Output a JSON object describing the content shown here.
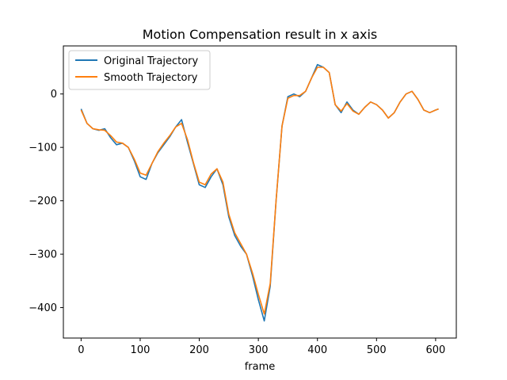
{
  "chart_data": {
    "type": "line",
    "title": "Motion Compensation result in x axis",
    "xlabel": "frame",
    "ylabel": "",
    "xlim": [
      -30,
      635
    ],
    "ylim": [
      -457,
      90
    ],
    "xticks": [
      0,
      100,
      200,
      300,
      400,
      500,
      600
    ],
    "yticks": [
      0,
      -100,
      -200,
      -300,
      -400
    ],
    "xtick_labels": [
      "0",
      "100",
      "200",
      "300",
      "400",
      "500",
      "600"
    ],
    "ytick_labels": [
      "0",
      "−100",
      "−200",
      "−300",
      "−400"
    ],
    "grid": false,
    "legend_position": "top-left",
    "series": [
      {
        "name": "Original Trajectory",
        "color": "#1f77b4",
        "x": [
          0,
          10,
          20,
          30,
          40,
          50,
          60,
          70,
          80,
          90,
          100,
          110,
          120,
          130,
          140,
          150,
          160,
          170,
          180,
          190,
          200,
          210,
          220,
          230,
          240,
          250,
          260,
          270,
          280,
          290,
          300,
          310,
          320,
          330,
          340,
          350,
          360,
          370,
          380,
          390,
          400,
          410,
          420,
          430,
          440,
          450,
          460,
          470,
          480,
          490,
          500,
          510,
          520,
          530,
          540,
          550,
          560,
          570,
          580,
          590,
          600,
          605
        ],
        "y": [
          -28,
          -55,
          -65,
          -68,
          -65,
          -82,
          -95,
          -92,
          -100,
          -125,
          -155,
          -160,
          -130,
          -110,
          -95,
          -80,
          -62,
          -48,
          -90,
          -130,
          -170,
          -175,
          -155,
          -140,
          -170,
          -230,
          -265,
          -285,
          -300,
          -340,
          -385,
          -425,
          -360,
          -200,
          -60,
          -5,
          0,
          -5,
          5,
          30,
          55,
          50,
          40,
          -20,
          -35,
          -15,
          -30,
          -38,
          -25,
          -15,
          -20,
          -30,
          -45,
          -35,
          -15,
          0,
          5,
          -10,
          -30,
          -35,
          -30,
          -28
        ]
      },
      {
        "name": "Smooth Trajectory",
        "color": "#ff7f0e",
        "x": [
          0,
          10,
          20,
          30,
          40,
          50,
          60,
          70,
          80,
          90,
          100,
          110,
          120,
          130,
          140,
          150,
          160,
          170,
          180,
          190,
          200,
          210,
          220,
          230,
          240,
          250,
          260,
          270,
          280,
          290,
          300,
          310,
          320,
          330,
          340,
          350,
          360,
          370,
          380,
          390,
          400,
          410,
          420,
          430,
          440,
          450,
          460,
          470,
          480,
          490,
          500,
          510,
          520,
          530,
          540,
          550,
          560,
          570,
          580,
          590,
          600,
          605
        ],
        "y": [
          -30,
          -55,
          -65,
          -67,
          -68,
          -78,
          -90,
          -92,
          -100,
          -122,
          -148,
          -152,
          -130,
          -108,
          -92,
          -78,
          -62,
          -55,
          -85,
          -128,
          -165,
          -170,
          -150,
          -140,
          -165,
          -225,
          -260,
          -280,
          -300,
          -335,
          -375,
          -412,
          -355,
          -200,
          -60,
          -8,
          -3,
          -3,
          5,
          30,
          50,
          50,
          40,
          -20,
          -32,
          -18,
          -32,
          -38,
          -25,
          -15,
          -20,
          -30,
          -45,
          -35,
          -15,
          0,
          5,
          -10,
          -30,
          -35,
          -30,
          -28
        ]
      }
    ]
  }
}
